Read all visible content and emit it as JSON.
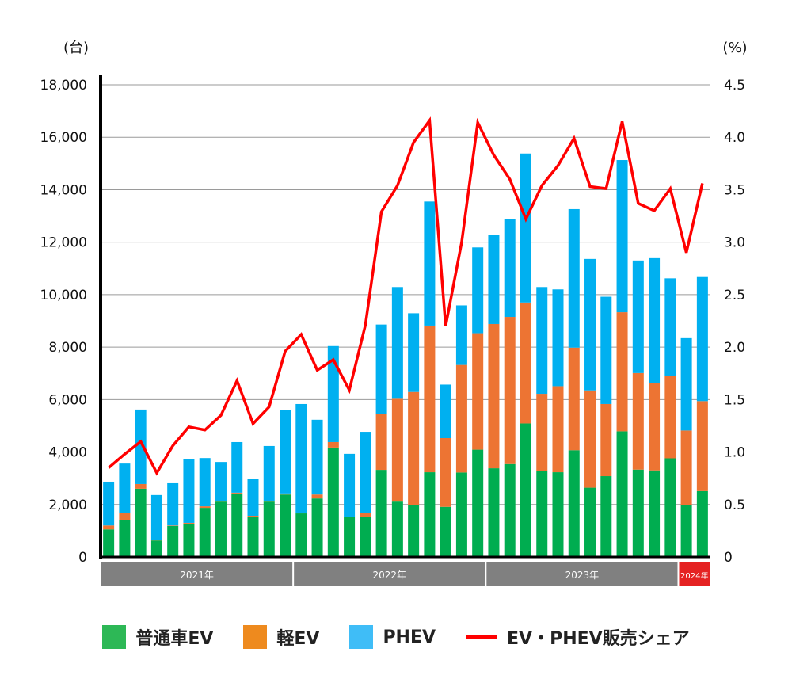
{
  "chart_data": {
    "type": "bar",
    "stacked": true,
    "left_unit": "(台)",
    "right_unit": "(%)",
    "ylim": [
      0,
      18000
    ],
    "y2lim": [
      0,
      4.5
    ],
    "yticks": [
      "0",
      "2,000",
      "4,000",
      "6,000",
      "8,000",
      "10,000",
      "12,000",
      "14,000",
      "16,000",
      "18,000"
    ],
    "y2ticks": [
      "0",
      "0.5",
      "1.0",
      "1.5",
      "2.0",
      "2.5",
      "3.0",
      "3.5",
      "4.0",
      "4.5"
    ],
    "grid": true,
    "legend_position": "bottom",
    "year_groups": [
      {
        "label": "2021年",
        "count": 12,
        "color": "#808080"
      },
      {
        "label": "2022年",
        "count": 12,
        "color": "#808080"
      },
      {
        "label": "2023年",
        "count": 12,
        "color": "#808080"
      },
      {
        "label": "2024年",
        "count": 2,
        "color": "#e52222"
      }
    ],
    "series": [
      {
        "name": "普通車EV",
        "color": "#00ad50",
        "kind": "bar",
        "values": [
          1050,
          1390,
          2600,
          630,
          1180,
          1270,
          1870,
          2110,
          2420,
          1540,
          2110,
          2380,
          1660,
          2230,
          4170,
          1540,
          1510,
          3320,
          2110,
          1980,
          3230,
          1910,
          3220,
          4090,
          3380,
          3540,
          5090,
          3270,
          3230,
          4070,
          2640,
          3080,
          4790,
          3330,
          3300,
          3760,
          1980,
          2510
        ]
      },
      {
        "name": "軽EV",
        "color": "#ed7433",
        "kind": "bar",
        "values": [
          150,
          300,
          180,
          30,
          20,
          30,
          60,
          20,
          30,
          30,
          30,
          40,
          30,
          150,
          210,
          0,
          180,
          2130,
          3920,
          4310,
          5590,
          2620,
          4100,
          4440,
          5500,
          5610,
          4610,
          2950,
          3280,
          3910,
          3710,
          2750,
          4540,
          3680,
          3320,
          3150,
          2840,
          3430
        ]
      },
      {
        "name": "PHEV",
        "color": "#00b0f0",
        "kind": "bar",
        "values": [
          1670,
          1870,
          2840,
          1700,
          1610,
          2420,
          1840,
          1490,
          1930,
          1420,
          2090,
          3170,
          4140,
          2850,
          3660,
          2390,
          3080,
          3410,
          4260,
          3000,
          4730,
          2040,
          2270,
          3270,
          3390,
          3720,
          5680,
          4070,
          3690,
          5280,
          5010,
          4090,
          5800,
          4290,
          4770,
          3710,
          3520,
          4730
        ]
      },
      {
        "name": "EV・PHEV販売シェア",
        "color": "#ff0000",
        "kind": "line",
        "axis": "right",
        "values": [
          0.85,
          0.98,
          1.1,
          0.8,
          1.06,
          1.24,
          1.21,
          1.35,
          1.68,
          1.27,
          1.43,
          1.96,
          2.12,
          1.78,
          1.88,
          1.59,
          2.21,
          3.29,
          3.54,
          3.95,
          4.16,
          2.2,
          3.0,
          4.14,
          3.83,
          3.6,
          3.22,
          3.54,
          3.73,
          3.99,
          3.53,
          3.51,
          4.15,
          3.37,
          3.3,
          3.51,
          2.9,
          3.56
        ]
      }
    ]
  }
}
